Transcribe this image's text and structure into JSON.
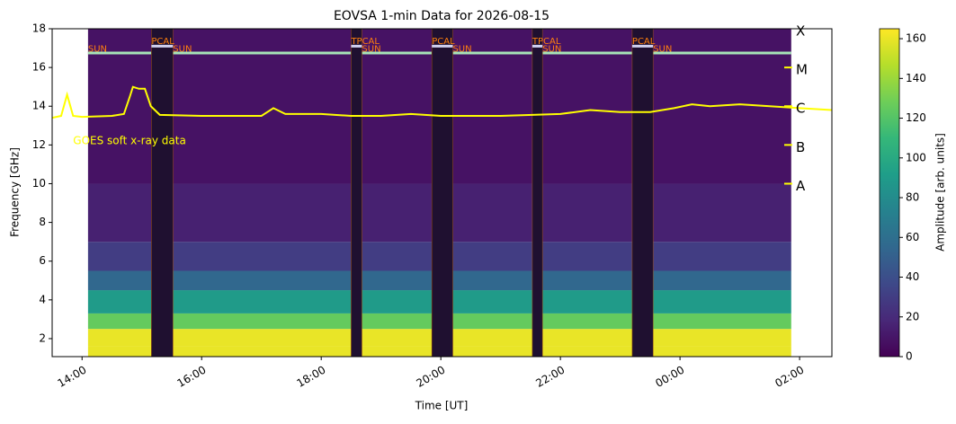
{
  "chart_data": {
    "type": "spectrogram",
    "title": "EOVSA 1-min Data for 2026-08-15",
    "x_label": "Time [UT]",
    "y_label": "Frequency [GHz]",
    "colorbar_label": "Amplitude [arb. units]",
    "colormap": "viridis",
    "xlim": [
      13.5,
      26.54
    ],
    "xticks": [
      {
        "value": 14,
        "label": "14:00"
      },
      {
        "value": 16,
        "label": "16:00"
      },
      {
        "value": 18,
        "label": "18:00"
      },
      {
        "value": 20,
        "label": "20:00"
      },
      {
        "value": 22,
        "label": "22:00"
      },
      {
        "value": 24,
        "label": "00:00"
      },
      {
        "value": 26,
        "label": "02:00"
      }
    ],
    "ylim": [
      1.07,
      18
    ],
    "yticks": [
      2,
      4,
      6,
      8,
      10,
      12,
      14,
      16,
      18
    ],
    "clim": [
      0,
      165
    ],
    "cticks": [
      0,
      20,
      40,
      60,
      80,
      100,
      120,
      140,
      160
    ],
    "heatmap": {
      "freq_edges": [
        1.07,
        1.6,
        2.5,
        3.3,
        4.5,
        5.5,
        7,
        10,
        18
      ],
      "amplitude": [
        160,
        160,
        125,
        90,
        55,
        30,
        15,
        8
      ]
    },
    "sun_segments": [
      {
        "label": "SUN",
        "start": 14.1,
        "end": 15.16
      },
      {
        "label": "SUN",
        "start": 15.52,
        "end": 18.5
      },
      {
        "label": "SUN",
        "start": 18.68,
        "end": 19.85
      },
      {
        "label": "SUN",
        "start": 20.2,
        "end": 21.53
      },
      {
        "label": "SUN",
        "start": 21.7,
        "end": 23.2
      },
      {
        "label": "SUN",
        "start": 23.55,
        "end": 25.86
      }
    ],
    "cal_segments": [
      {
        "label": "PCAL",
        "start": 15.16,
        "end": 15.52
      },
      {
        "label": "TPCAL",
        "start": 18.5,
        "end": 18.68
      },
      {
        "label": "PCAL",
        "start": 19.85,
        "end": 20.2
      },
      {
        "label": "TPCAL",
        "start": 21.53,
        "end": 21.7
      },
      {
        "label": "PCAL",
        "start": 23.2,
        "end": 23.55
      }
    ],
    "goes": {
      "name": "GOES soft x-ray data",
      "color": "#ffff00",
      "x": [
        13.5,
        13.65,
        13.75,
        13.85,
        14.0,
        14.5,
        14.7,
        14.8,
        14.85,
        14.95,
        15.05,
        15.15,
        15.3,
        16.0,
        17.0,
        17.2,
        17.4,
        18.0,
        18.5,
        19.0,
        19.5,
        20.0,
        21.0,
        22.0,
        22.5,
        23.0,
        23.5,
        23.9,
        24.2,
        24.5,
        25.0,
        25.5,
        26.0,
        26.54
      ],
      "values": [
        13.4,
        13.5,
        14.6,
        13.5,
        13.45,
        13.5,
        13.6,
        14.5,
        15.0,
        14.9,
        14.9,
        14.0,
        13.55,
        13.5,
        13.5,
        13.9,
        13.6,
        13.6,
        13.5,
        13.5,
        13.6,
        13.5,
        13.5,
        13.6,
        13.8,
        13.7,
        13.7,
        13.9,
        14.1,
        14.0,
        14.1,
        14.0,
        13.9,
        13.8
      ]
    },
    "goes_classes": [
      {
        "label": "A",
        "value": 10
      },
      {
        "label": "B",
        "value": 12
      },
      {
        "label": "C",
        "value": 14
      },
      {
        "label": "M",
        "value": 16
      },
      {
        "label": "X",
        "value": 18
      }
    ]
  }
}
